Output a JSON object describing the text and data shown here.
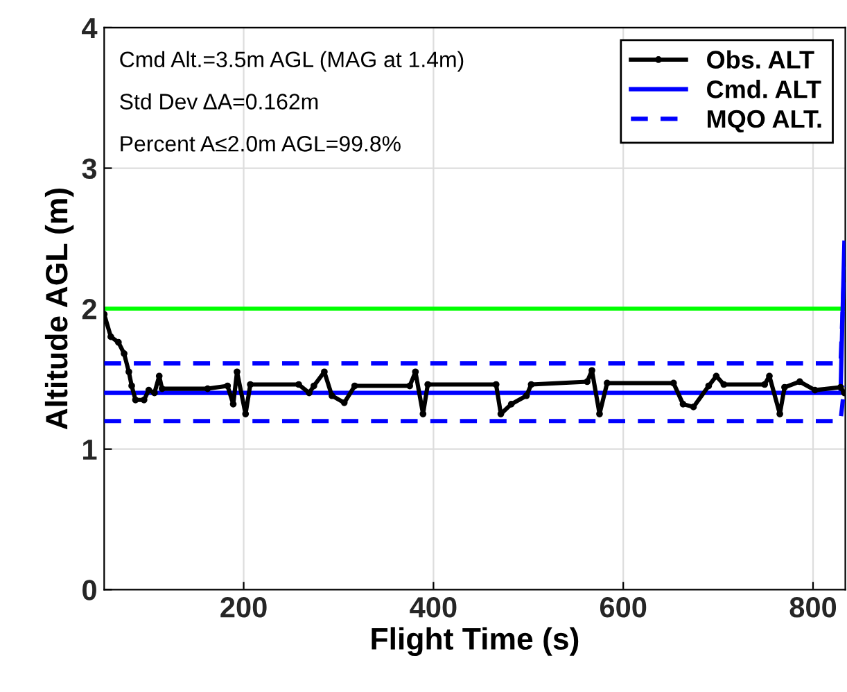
{
  "chart_data": {
    "type": "line",
    "xlabel": "Flight Time (s)",
    "ylabel": "Altitude AGL (m)",
    "xlim": [
      53,
      834
    ],
    "xticks": [
      200,
      400,
      600,
      800
    ],
    "ylim": [
      0,
      4
    ],
    "yticks": [
      0,
      1,
      2,
      3,
      4
    ],
    "grid": true,
    "legend": "top right",
    "annotations": [
      "Cmd Alt.=3.5m AGL (MAG at 1.4m)",
      "Std Dev ΔA=0.162m",
      "Percent A≤2.0m AGL=99.8%"
    ],
    "ref_lines": [
      {
        "axis": "y",
        "value": 2.0,
        "label": null,
        "color": "#00ff00"
      }
    ],
    "series": [
      {
        "name": "Obs. ALT",
        "color": "#000000",
        "marker": "circle",
        "line_style": "solid",
        "x": [
          53,
          60,
          68,
          74,
          79,
          82,
          86,
          95,
          100,
          106,
          111,
          114,
          162,
          183,
          189,
          193,
          202,
          207,
          258,
          269,
          274,
          285,
          293,
          306,
          317,
          375,
          381,
          389,
          394,
          466,
          471,
          482,
          498,
          503,
          562,
          567,
          575,
          583,
          653,
          663,
          674,
          690,
          698,
          706,
          749,
          754,
          765,
          770,
          786,
          802,
          829,
          833
        ],
        "values": [
          1.96,
          1.8,
          1.76,
          1.68,
          1.55,
          1.45,
          1.35,
          1.35,
          1.42,
          1.4,
          1.52,
          1.43,
          1.43,
          1.45,
          1.32,
          1.55,
          1.25,
          1.46,
          1.46,
          1.4,
          1.45,
          1.55,
          1.38,
          1.33,
          1.45,
          1.45,
          1.55,
          1.25,
          1.46,
          1.46,
          1.25,
          1.32,
          1.38,
          1.46,
          1.48,
          1.56,
          1.25,
          1.47,
          1.47,
          1.32,
          1.3,
          1.45,
          1.52,
          1.46,
          1.46,
          1.52,
          1.25,
          1.44,
          1.48,
          1.42,
          1.44,
          1.4
        ]
      },
      {
        "name": "Cmd. ALT",
        "color": "#0000ff",
        "marker": "none",
        "line_style": "solid",
        "x": [
          53,
          829,
          833
        ],
        "values": [
          1.4,
          1.4,
          2.47
        ]
      },
      {
        "name": "MQO ALT.",
        "color": "#0000ff",
        "marker": "none",
        "line_style": "dashed",
        "x": [
          53,
          829,
          833,
          null,
          53,
          829,
          833
        ],
        "values": [
          1.61,
          1.61,
          2.3,
          null,
          1.2,
          1.2,
          1.45
        ]
      }
    ]
  }
}
